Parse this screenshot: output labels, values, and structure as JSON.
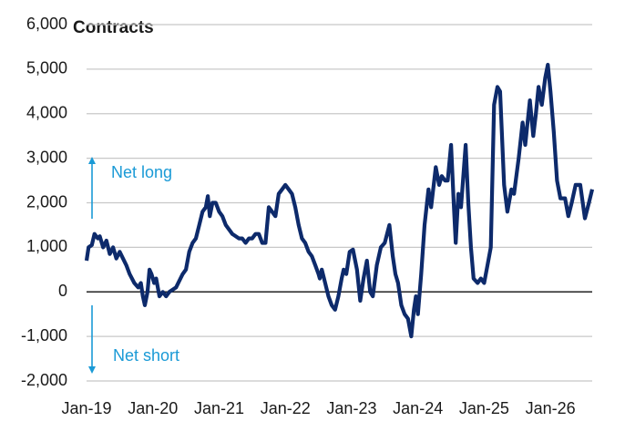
{
  "chart_data": {
    "type": "line",
    "title": "Contracts",
    "annotations": [
      "Net long",
      "Net short"
    ],
    "annotation_color": "#1a9ad6",
    "xlim": [
      2019,
      2026.63
    ],
    "xticks": [
      {
        "value": 2019,
        "label": "Jan-19"
      },
      {
        "value": 2020,
        "label": "Jan-20"
      },
      {
        "value": 2021,
        "label": "Jan-21"
      },
      {
        "value": 2022,
        "label": "Jan-22"
      },
      {
        "value": 2023,
        "label": "Jan-23"
      },
      {
        "value": 2024,
        "label": "Jan-24"
      },
      {
        "value": 2025,
        "label": "Jan-25"
      },
      {
        "value": 2026,
        "label": "Jan-26"
      }
    ],
    "ylim": [
      -2000,
      6000
    ],
    "yticks": [
      {
        "value": -2000,
        "label": "-2,000"
      },
      {
        "value": -1000,
        "label": "-1,000"
      },
      0,
      {
        "value": 1000,
        "label": "1,000"
      },
      {
        "value": 2000,
        "label": "2,000"
      },
      {
        "value": 3000,
        "label": "3,000"
      },
      {
        "value": 4000,
        "label": "4,000"
      },
      {
        "value": 5000,
        "label": "5,000"
      },
      {
        "value": 6000,
        "label": "6,000"
      }
    ],
    "grid": true,
    "color": "#0d2a6b",
    "x": [
      2019.0,
      2019.03,
      2019.08,
      2019.12,
      2019.17,
      2019.2,
      2019.25,
      2019.3,
      2019.35,
      2019.4,
      2019.45,
      2019.5,
      2019.6,
      2019.65,
      2019.72,
      2019.78,
      2019.82,
      2019.85,
      2019.88,
      2019.92,
      2019.95,
      2019.98,
      2020.02,
      2020.05,
      2020.1,
      2020.15,
      2020.2,
      2020.25,
      2020.35,
      2020.45,
      2020.5,
      2020.55,
      2020.6,
      2020.65,
      2020.7,
      2020.75,
      2020.8,
      2020.83,
      2020.86,
      2020.9,
      2020.95,
      2021.0,
      2021.05,
      2021.1,
      2021.2,
      2021.3,
      2021.35,
      2021.4,
      2021.45,
      2021.5,
      2021.55,
      2021.6,
      2021.65,
      2021.7,
      2021.75,
      2021.8,
      2021.85,
      2021.9,
      2021.95,
      2022.0,
      2022.05,
      2022.1,
      2022.15,
      2022.2,
      2022.25,
      2022.3,
      2022.35,
      2022.4,
      2022.45,
      2022.5,
      2022.52,
      2022.55,
      2022.6,
      2022.65,
      2022.7,
      2022.75,
      2022.8,
      2022.85,
      2022.88,
      2022.92,
      2022.97,
      2023.02,
      2023.08,
      2023.13,
      2023.18,
      2023.23,
      2023.28,
      2023.32,
      2023.38,
      2023.44,
      2023.5,
      2023.57,
      2023.62,
      2023.66,
      2023.7,
      2023.75,
      2023.8,
      2023.85,
      2023.9,
      2023.94,
      2023.97,
      2024.0,
      2024.05,
      2024.1,
      2024.16,
      2024.2,
      2024.27,
      2024.32,
      2024.36,
      2024.41,
      2024.45,
      2024.5,
      2024.54,
      2024.57,
      2024.61,
      2024.65,
      2024.72,
      2024.76,
      2024.8,
      2024.84,
      2024.9,
      2024.95,
      2025.0,
      2025.05,
      2025.1,
      2025.15,
      2025.2,
      2025.24,
      2025.3,
      2025.35,
      2025.41,
      2025.45,
      2025.52,
      2025.58,
      2025.62,
      2025.69,
      2025.74,
      2025.78,
      2025.82,
      2025.87,
      2025.92,
      2025.96,
      2026.0,
      2026.05,
      2026.1,
      2026.15,
      2026.22,
      2026.27,
      2026.32,
      2026.38,
      2026.45,
      2026.52,
      2026.58,
      2026.63
    ],
    "values": [
      700,
      1000,
      1050,
      1300,
      1200,
      1250,
      1000,
      1150,
      850,
      1000,
      750,
      900,
      600,
      400,
      200,
      100,
      200,
      -100,
      -300,
      0,
      500,
      400,
      200,
      300,
      -100,
      0,
      -100,
      0,
      100,
      400,
      500,
      900,
      1100,
      1200,
      1500,
      1800,
      1900,
      2150,
      1700,
      2000,
      2000,
      1800,
      1700,
      1500,
      1300,
      1200,
      1200,
      1100,
      1200,
      1200,
      1300,
      1300,
      1100,
      1100,
      1900,
      1800,
      1700,
      2200,
      2300,
      2400,
      2300,
      2200,
      1900,
      1500,
      1200,
      1100,
      900,
      800,
      600,
      400,
      300,
      500,
      200,
      -100,
      -300,
      -400,
      -100,
      300,
      500,
      400,
      900,
      950,
      500,
      -200,
      300,
      700,
      0,
      -100,
      600,
      1000,
      1100,
      1500,
      800,
      400,
      200,
      -300,
      -500,
      -600,
      -1000,
      -400,
      -100,
      -500,
      400,
      1500,
      2300,
      1900,
      2800,
      2400,
      2600,
      2500,
      2500,
      3300,
      2000,
      1100,
      2200,
      1900,
      3300,
      2000,
      1000,
      300,
      200,
      300,
      200,
      600,
      1000,
      4200,
      4600,
      4500,
      2400,
      1800,
      2300,
      2200,
      3000,
      3800,
      3300,
      4300,
      3500,
      4000,
      4600,
      4200,
      4800,
      5100,
      4500,
      3600,
      2500,
      2100,
      2100,
      1700,
      2000,
      2400,
      2400,
      1650,
      2000,
      2300
    ]
  }
}
